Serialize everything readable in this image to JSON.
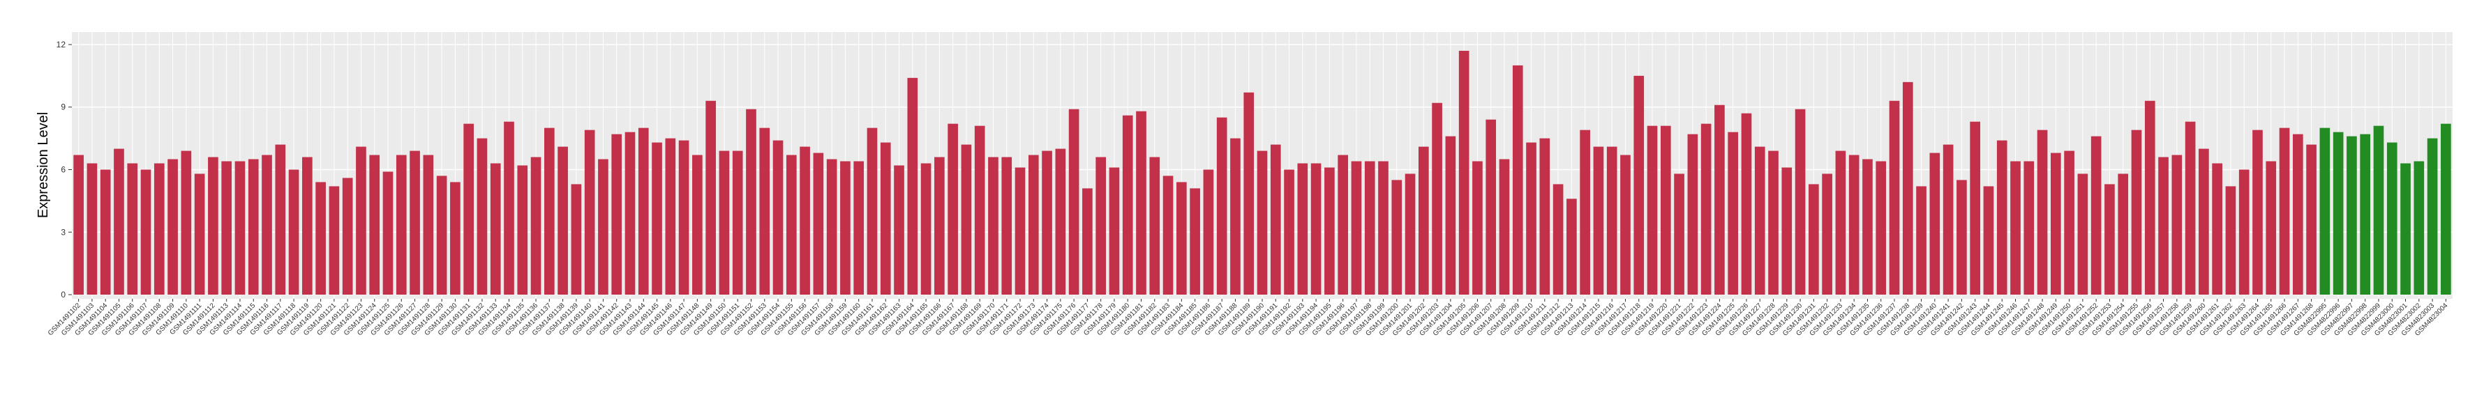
{
  "chart_data": {
    "type": "bar",
    "y_label": "Expression Level",
    "categories": [
      "GSM1491102",
      "GSM1491103",
      "GSM1491104",
      "GSM1491105",
      "GSM1491106",
      "GSM1491107",
      "GSM1491108",
      "GSM1491109",
      "GSM1491110",
      "GSM1491111",
      "GSM1491112",
      "GSM1491113",
      "GSM1491114",
      "GSM1491115",
      "GSM1491116",
      "GSM1491117",
      "GSM1491118",
      "GSM1491119",
      "GSM1491120",
      "GSM1491121",
      "GSM1491122",
      "GSM1491123",
      "GSM1491124",
      "GSM1491125",
      "GSM1491126",
      "GSM1491127",
      "GSM1491128",
      "GSM1491129",
      "GSM1491130",
      "GSM1491131",
      "GSM1491132",
      "GSM1491133",
      "GSM1491134",
      "GSM1491135",
      "GSM1491136",
      "GSM1491137",
      "GSM1491138",
      "GSM1491139",
      "GSM1491140",
      "GSM1491141",
      "GSM1491142",
      "GSM1491143",
      "GSM1491144",
      "GSM1491145",
      "GSM1491146",
      "GSM1491147",
      "GSM1491148",
      "GSM1491149",
      "GSM1491150",
      "GSM1491151",
      "GSM1491152",
      "GSM1491153",
      "GSM1491154",
      "GSM1491155",
      "GSM1491156",
      "GSM1491157",
      "GSM1491158",
      "GSM1491159",
      "GSM1491160",
      "GSM1491161",
      "GSM1491162",
      "GSM1491163",
      "GSM1491164",
      "GSM1491165",
      "GSM1491166",
      "GSM1491167",
      "GSM1491168",
      "GSM1491169",
      "GSM1491170",
      "GSM1491171",
      "GSM1491172",
      "GSM1491173",
      "GSM1491174",
      "GSM1491175",
      "GSM1491176",
      "GSM1491177",
      "GSM1491178",
      "GSM1491179",
      "GSM1491180",
      "GSM1491181",
      "GSM1491182",
      "GSM1491183",
      "GSM1491184",
      "GSM1491185",
      "GSM1491186",
      "GSM1491187",
      "GSM1491188",
      "GSM1491189",
      "GSM1491190",
      "GSM1491191",
      "GSM1491192",
      "GSM1491193",
      "GSM1491194",
      "GSM1491195",
      "GSM1491196",
      "GSM1491197",
      "GSM1491198",
      "GSM1491199",
      "GSM1491200",
      "GSM1491201",
      "GSM1491202",
      "GSM1491203",
      "GSM1491204",
      "GSM1491205",
      "GSM1491206",
      "GSM1491207",
      "GSM1491208",
      "GSM1491209",
      "GSM1491210",
      "GSM1491211",
      "GSM1491212",
      "GSM1491213",
      "GSM1491214",
      "GSM1491215",
      "GSM1491216",
      "GSM1491217",
      "GSM1491218",
      "GSM1491219",
      "GSM1491220",
      "GSM1491221",
      "GSM1491222",
      "GSM1491223",
      "GSM1491224",
      "GSM1491225",
      "GSM1491226",
      "GSM1491227",
      "GSM1491228",
      "GSM1491229",
      "GSM1491230",
      "GSM1491231",
      "GSM1491232",
      "GSM1491233",
      "GSM1491234",
      "GSM1491235",
      "GSM1491236",
      "GSM1491237",
      "GSM1491238",
      "GSM1491239",
      "GSM1491240",
      "GSM1491241",
      "GSM1491242",
      "GSM1491243",
      "GSM1491244",
      "GSM1491245",
      "GSM1491246",
      "GSM1491247",
      "GSM1491248",
      "GSM1491249",
      "GSM1491250",
      "GSM1491251",
      "GSM1491252",
      "GSM1491253",
      "GSM1491254",
      "GSM1491255",
      "GSM1491256",
      "GSM1491257",
      "GSM1491258",
      "GSM1491259",
      "GSM1491260",
      "GSM1491261",
      "GSM1491262",
      "GSM1491263",
      "GSM1491264",
      "GSM1491265",
      "GSM1491266",
      "GSM1491267",
      "GSM1491268",
      "GSM4822995",
      "GSM4822996",
      "GSM4822997",
      "GSM4822998",
      "GSM4822999",
      "GSM4823000",
      "GSM4823001",
      "GSM4823002",
      "GSM4823003",
      "GSM4823004"
    ],
    "values": [
      6.7,
      6.3,
      6.0,
      7.0,
      6.3,
      6.0,
      6.3,
      6.5,
      6.9,
      5.8,
      6.6,
      6.4,
      6.4,
      6.5,
      6.7,
      7.2,
      6.0,
      6.6,
      5.4,
      5.2,
      5.6,
      7.1,
      6.7,
      5.9,
      6.7,
      6.9,
      6.7,
      5.7,
      5.4,
      8.2,
      7.5,
      6.3,
      8.3,
      6.2,
      6.6,
      8.0,
      7.1,
      5.3,
      7.9,
      6.5,
      7.7,
      7.8,
      8.0,
      7.3,
      7.5,
      7.4,
      6.7,
      9.3,
      6.9,
      6.9,
      8.9,
      8.0,
      7.4,
      6.7,
      7.1,
      6.8,
      6.5,
      6.4,
      6.4,
      8.0,
      7.3,
      6.2,
      10.4,
      6.3,
      6.6,
      8.2,
      7.2,
      8.1,
      6.6,
      6.6,
      6.1,
      6.7,
      6.9,
      7.0,
      8.9,
      5.1,
      6.6,
      6.1,
      8.6,
      8.8,
      6.6,
      5.7,
      5.4,
      5.1,
      6.0,
      8.5,
      7.5,
      9.7,
      6.9,
      7.2,
      6.0,
      6.3,
      6.3,
      6.1,
      6.7,
      6.4,
      6.4,
      6.4,
      5.5,
      5.8,
      7.1,
      9.2,
      7.6,
      11.7,
      6.4,
      8.4,
      6.5,
      11.0,
      7.3,
      7.5,
      5.3,
      4.6,
      7.9,
      7.1,
      7.1,
      6.7,
      10.5,
      8.1,
      8.1,
      5.8,
      7.7,
      8.2,
      9.1,
      7.8,
      8.7,
      7.1,
      6.9,
      6.1,
      8.9,
      5.3,
      5.8,
      6.9,
      6.7,
      6.5,
      6.4,
      9.3,
      10.2,
      5.2,
      6.8,
      7.2,
      5.5,
      8.3,
      5.2,
      7.4,
      6.4,
      6.4,
      7.9,
      6.8,
      6.9,
      5.8,
      7.6,
      5.3,
      5.8,
      7.9,
      9.3,
      6.6,
      6.7,
      8.3,
      7.0,
      6.3,
      5.2,
      6.0,
      7.9,
      6.4,
      8.0,
      7.7,
      7.2,
      8.0,
      7.8,
      7.6,
      7.7,
      8.1,
      7.3,
      6.3,
      6.4,
      7.5,
      8.2
    ],
    "colors": [
      "#c23149",
      "#c23149",
      "#c23149",
      "#c23149",
      "#c23149",
      "#c23149",
      "#c23149",
      "#c23149",
      "#c23149",
      "#c23149",
      "#c23149",
      "#c23149",
      "#c23149",
      "#c23149",
      "#c23149",
      "#c23149",
      "#c23149",
      "#c23149",
      "#c23149",
      "#c23149",
      "#c23149",
      "#c23149",
      "#c23149",
      "#c23149",
      "#c23149",
      "#c23149",
      "#c23149",
      "#c23149",
      "#c23149",
      "#c23149",
      "#c23149",
      "#c23149",
      "#c23149",
      "#c23149",
      "#c23149",
      "#c23149",
      "#c23149",
      "#c23149",
      "#c23149",
      "#c23149",
      "#c23149",
      "#c23149",
      "#c23149",
      "#c23149",
      "#c23149",
      "#c23149",
      "#c23149",
      "#c23149",
      "#c23149",
      "#c23149",
      "#c23149",
      "#c23149",
      "#c23149",
      "#c23149",
      "#c23149",
      "#c23149",
      "#c23149",
      "#c23149",
      "#c23149",
      "#c23149",
      "#c23149",
      "#c23149",
      "#c23149",
      "#c23149",
      "#c23149",
      "#c23149",
      "#c23149",
      "#c23149",
      "#c23149",
      "#c23149",
      "#c23149",
      "#c23149",
      "#c23149",
      "#c23149",
      "#c23149",
      "#c23149",
      "#c23149",
      "#c23149",
      "#c23149",
      "#c23149",
      "#c23149",
      "#c23149",
      "#c23149",
      "#c23149",
      "#c23149",
      "#c23149",
      "#c23149",
      "#c23149",
      "#c23149",
      "#c23149",
      "#c23149",
      "#c23149",
      "#c23149",
      "#c23149",
      "#c23149",
      "#c23149",
      "#c23149",
      "#c23149",
      "#c23149",
      "#c23149",
      "#c23149",
      "#c23149",
      "#c23149",
      "#c23149",
      "#c23149",
      "#c23149",
      "#c23149",
      "#c23149",
      "#c23149",
      "#c23149",
      "#c23149",
      "#c23149",
      "#c23149",
      "#c23149",
      "#c23149",
      "#c23149",
      "#c23149",
      "#c23149",
      "#c23149",
      "#c23149",
      "#c23149",
      "#c23149",
      "#c23149",
      "#c23149",
      "#c23149",
      "#c23149",
      "#c23149",
      "#c23149",
      "#c23149",
      "#c23149",
      "#c23149",
      "#c23149",
      "#c23149",
      "#c23149",
      "#c23149",
      "#c23149",
      "#c23149",
      "#c23149",
      "#c23149",
      "#c23149",
      "#c23149",
      "#c23149",
      "#c23149",
      "#c23149",
      "#c23149",
      "#c23149",
      "#c23149",
      "#c23149",
      "#c23149",
      "#c23149",
      "#c23149",
      "#c23149",
      "#c23149",
      "#c23149",
      "#c23149",
      "#c23149",
      "#c23149",
      "#c23149",
      "#c23149",
      "#c23149",
      "#c23149",
      "#c23149",
      "#c23149",
      "#c23149",
      "#c23149",
      "#c23149",
      "#c23149",
      "#228b22",
      "#228b22",
      "#228b22",
      "#228b22",
      "#228b22",
      "#228b22",
      "#228b22",
      "#228b22",
      "#228b22",
      "#228b22"
    ],
    "ylim": [
      -0.2,
      12.6
    ],
    "yticks": [
      0,
      3,
      6,
      9,
      12
    ],
    "grid": true
  }
}
